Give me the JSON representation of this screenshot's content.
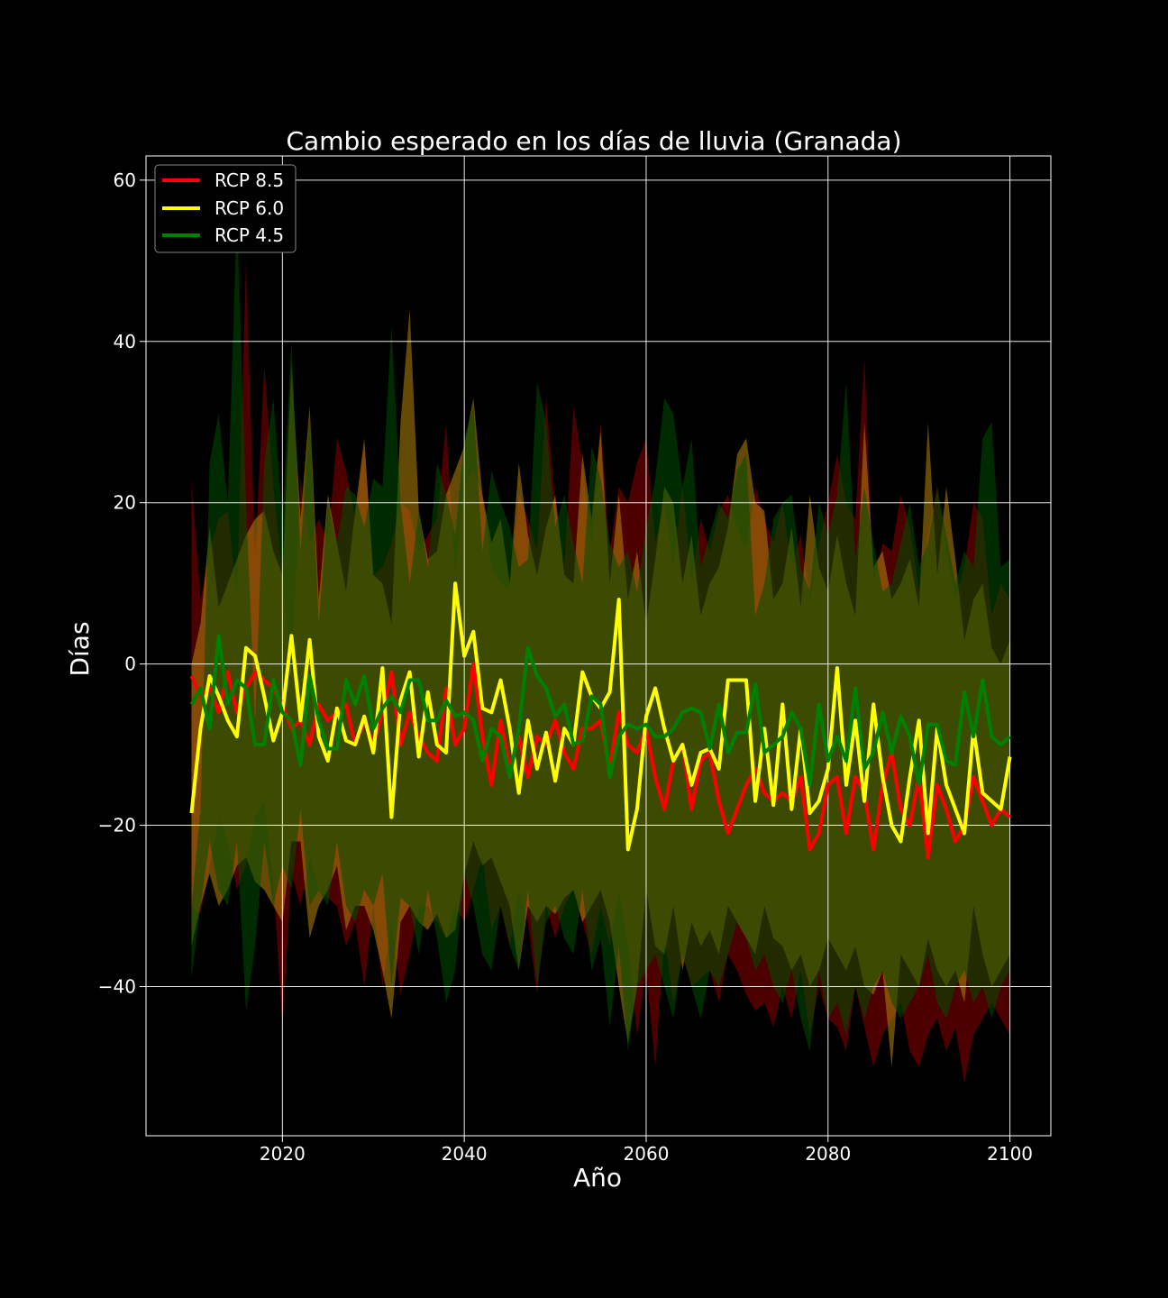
{
  "chart_data": {
    "type": "line",
    "title": "Cambio esperado en los días de lluvia (Granada)",
    "xlabel": "Año",
    "ylabel": "Días",
    "xlim": [
      2005,
      2104.5
    ],
    "ylim": [
      -58.5,
      63.0
    ],
    "x_ticks": [
      2020,
      2040,
      2060,
      2080,
      2100
    ],
    "x_tick_labels": [
      "2020",
      "2040",
      "2060",
      "2080",
      "2100"
    ],
    "y_ticks": [
      60,
      40,
      20,
      0,
      -20,
      -40
    ],
    "y_tick_labels": [
      "60",
      "40",
      "20",
      "0",
      "−20",
      "−40"
    ],
    "grid": true,
    "legend_position": "top-left",
    "background": "#000000",
    "x": [
      2010,
      2011,
      2012,
      2013,
      2014,
      2015,
      2016,
      2017,
      2018,
      2019,
      2020,
      2021,
      2022,
      2023,
      2024,
      2025,
      2026,
      2027,
      2028,
      2029,
      2030,
      2031,
      2032,
      2033,
      2034,
      2035,
      2036,
      2037,
      2038,
      2039,
      2040,
      2041,
      2042,
      2043,
      2044,
      2045,
      2046,
      2047,
      2048,
      2049,
      2050,
      2051,
      2052,
      2053,
      2054,
      2055,
      2056,
      2057,
      2058,
      2059,
      2060,
      2061,
      2062,
      2063,
      2064,
      2065,
      2066,
      2067,
      2068,
      2069,
      2070,
      2071,
      2072,
      2073,
      2074,
      2075,
      2076,
      2077,
      2078,
      2079,
      2080,
      2081,
      2082,
      2083,
      2084,
      2085,
      2086,
      2087,
      2088,
      2089,
      2090,
      2091,
      2092,
      2093,
      2094,
      2095,
      2096,
      2097,
      2098,
      2099,
      2100
    ],
    "series": [
      {
        "name": "RCP 8.5",
        "color": "#ff0000",
        "band_color": "#8b0000",
        "values": [
          -1.5,
          -4,
          -3,
          -6,
          -1,
          -6,
          -3,
          -1,
          -2,
          -3,
          -5,
          -8,
          -7,
          -10,
          -5,
          -7,
          -6,
          -5,
          -10,
          -7,
          -10,
          -6,
          -1,
          -10,
          -6,
          -9,
          -11,
          -12,
          -3,
          -10,
          -8,
          0,
          -9,
          -15,
          -7,
          -13,
          -9,
          -14,
          -9,
          -10,
          -7,
          -11,
          -13,
          -8,
          -8,
          -7,
          -13,
          -6,
          -10,
          -11,
          -8,
          -14,
          -18,
          -12,
          -10,
          -18,
          -12,
          -11,
          -17,
          -21,
          -18,
          -15,
          -13,
          -16,
          -17,
          -16,
          -17,
          -14,
          -23,
          -21,
          -15,
          -14,
          -21,
          -14,
          -16,
          -23,
          -15,
          -11,
          -18,
          -20,
          -14,
          -24,
          -15,
          -18,
          -22,
          -20,
          -14,
          -17,
          -20,
          -18,
          -19
        ],
        "band_low": [
          -30,
          -31,
          -25,
          -19,
          -22,
          -28,
          -25,
          -19,
          -17,
          -27,
          -45,
          -26,
          -30,
          -24,
          -28,
          -29,
          -30,
          -35,
          -32,
          -40,
          -30,
          -40,
          -32,
          -41,
          -36,
          -30,
          -30,
          -32,
          -34,
          -30,
          -32,
          -28,
          -24,
          -33,
          -30,
          -35,
          -28,
          -32,
          -41,
          -30,
          -34,
          -30,
          -28,
          -32,
          -36,
          -30,
          -35,
          -28,
          -35,
          -46,
          -38,
          -50,
          -34,
          -42,
          -36,
          -40,
          -39,
          -38,
          -42,
          -36,
          -38,
          -41,
          -43,
          -42,
          -45,
          -40,
          -44,
          -38,
          -46,
          -40,
          -44,
          -45,
          -48,
          -40,
          -45,
          -50,
          -46,
          -44,
          -42,
          -48,
          -50,
          -46,
          -44,
          -48,
          -45,
          -52,
          -46,
          -44,
          -42,
          -44,
          -46
        ],
        "band_high": [
          23,
          8,
          14,
          18,
          19,
          8,
          50,
          13,
          37,
          22,
          11,
          -1,
          23,
          15,
          18,
          15,
          28,
          24,
          18,
          27,
          11,
          12,
          15,
          20,
          19,
          14,
          16,
          18,
          30,
          11,
          22,
          24,
          21,
          12,
          10,
          9,
          21,
          18,
          14,
          33,
          20,
          12,
          32,
          25,
          15,
          30,
          14,
          22,
          20,
          25,
          28,
          15,
          20,
          12,
          22,
          10,
          18,
          14,
          19,
          21,
          17,
          14,
          22,
          18,
          15,
          20,
          12,
          16,
          8,
          15,
          20,
          26,
          20,
          18,
          38,
          10,
          15,
          14,
          21,
          17,
          9,
          16,
          22,
          14,
          8,
          12,
          20,
          18,
          6,
          10,
          8
        ]
      },
      {
        "name": "RCP 6.0",
        "color": "#ffff00",
        "band_color": "#b8860b",
        "values": [
          -18.5,
          -8,
          -1.5,
          -4,
          -7,
          -9,
          2,
          1,
          -4,
          -9.5,
          -6,
          3.5,
          -7,
          3,
          -9,
          -12,
          -5.5,
          -9.5,
          -10,
          -6.5,
          -11,
          -0.5,
          -19,
          -4.5,
          -1,
          -11.5,
          -3.5,
          -10,
          -11,
          10,
          1,
          4,
          -5.5,
          -6,
          -2,
          -8,
          -16,
          -7,
          -13,
          -8.5,
          -14.5,
          -8,
          -10,
          -1,
          -4,
          -5.5,
          -3.5,
          8,
          -23,
          -18,
          -6.5,
          -3,
          -8,
          -12,
          -10,
          -15,
          -11,
          -10.5,
          -13,
          -2,
          -2,
          -2,
          -17,
          -8,
          -17.5,
          -5,
          -18,
          -8,
          -18.5,
          -17,
          -13,
          -0.5,
          -15,
          -7,
          -17,
          -5,
          -14,
          -20,
          -22,
          -14,
          -7,
          -21,
          -8,
          -15,
          -18,
          -21,
          -8,
          -16,
          -17,
          -18,
          -11.5
        ],
        "band_low": [
          -35,
          -30,
          -26,
          -30,
          -28,
          -25,
          -24,
          -27,
          -28,
          -30,
          -32,
          -22,
          -22,
          -34,
          -30,
          -28,
          -25,
          -33,
          -30,
          -30,
          -33,
          -38,
          -44,
          -32,
          -30,
          -32,
          -33,
          -31,
          -34,
          -33,
          -26,
          -22,
          -25,
          -24,
          -27,
          -30,
          -38,
          -30,
          -32,
          -30,
          -31,
          -29,
          -28,
          -32,
          -30,
          -28,
          -32,
          -40,
          -47,
          -40,
          -28,
          -35,
          -36,
          -30,
          -38,
          -32,
          -35,
          -33,
          -36,
          -30,
          -32,
          -34,
          -36,
          -30,
          -34,
          -35,
          -38,
          -36,
          -40,
          -38,
          -34,
          -36,
          -38,
          -35,
          -40,
          -41,
          -38,
          -50,
          -36,
          -38,
          -40,
          -34,
          -38,
          -40,
          -38,
          -42,
          -30,
          -36,
          -40,
          -38,
          -36
        ],
        "band_high": [
          0,
          5,
          17,
          7,
          10,
          13,
          16,
          18,
          19,
          14,
          11,
          37,
          18,
          32,
          8,
          21,
          15,
          9,
          19,
          28,
          11,
          10,
          5,
          30,
          44,
          19,
          13,
          14,
          21,
          24,
          27,
          33,
          21,
          15,
          18,
          10,
          25,
          16,
          11,
          17,
          21,
          11,
          10,
          26,
          18,
          29,
          10,
          21,
          8,
          14,
          5,
          13,
          22,
          20,
          10,
          16,
          6,
          10,
          12,
          17,
          26,
          28,
          20,
          19,
          8,
          10,
          17,
          7,
          21,
          12,
          9,
          16,
          10,
          6,
          30,
          12,
          14,
          8,
          10,
          13,
          7,
          30,
          11,
          22,
          13,
          3,
          8,
          10,
          2,
          0,
          3
        ]
      },
      {
        "name": "RCP 4.5",
        "color": "#008000",
        "band_color": "#004d00",
        "values": [
          -5,
          -3,
          -8,
          3.5,
          -5,
          -2,
          -3,
          -10,
          -10,
          -2,
          -6,
          -7,
          -12.5,
          -1.5,
          -7,
          -10.5,
          -10.5,
          -2,
          -5,
          -1.5,
          -8,
          -5.5,
          -4,
          -6,
          -2,
          -2,
          -7,
          -7,
          -4.5,
          -6.5,
          -6,
          -7,
          -12,
          -8,
          -9,
          -14,
          -8,
          2,
          -1.5,
          -3,
          -6.5,
          -5,
          -10,
          -9.5,
          -4,
          -5,
          -14,
          -9,
          -7.5,
          -8,
          -7.5,
          -9,
          -9,
          -8,
          -6,
          -5.5,
          -6,
          -10.5,
          -5,
          -11,
          -8.5,
          -8.5,
          -2.5,
          -11,
          -10,
          -9,
          -6,
          -8,
          -15,
          -5,
          -12,
          -9,
          -12,
          -3,
          -13,
          -11,
          -6,
          -11,
          -6.5,
          -9,
          -15,
          -7.5,
          -7.5,
          -12,
          -12.5,
          -3.5,
          -9,
          -2,
          -9,
          -10,
          -9
        ],
        "band_low": [
          -39,
          -30,
          -22,
          -28,
          -30,
          -22,
          -43,
          -35,
          -22,
          -30,
          -25,
          -28,
          -18,
          -30,
          -28,
          -30,
          -22,
          -30,
          -32,
          -28,
          -30,
          -26,
          -40,
          -29,
          -30,
          -36,
          -28,
          -34,
          -42,
          -38,
          -26,
          -30,
          -36,
          -38,
          -30,
          -35,
          -38,
          -28,
          -40,
          -32,
          -30,
          -34,
          -36,
          -28,
          -38,
          -34,
          -45,
          -35,
          -48,
          -40,
          -38,
          -36,
          -40,
          -44,
          -36,
          -40,
          -44,
          -38,
          -40,
          -36,
          -32,
          -34,
          -38,
          -36,
          -40,
          -42,
          -38,
          -44,
          -48,
          -38,
          -44,
          -42,
          -46,
          -40,
          -44,
          -40,
          -38,
          -42,
          -44,
          -42,
          -40,
          -36,
          -42,
          -44,
          -40,
          -38,
          -42,
          -40,
          -44,
          -40,
          -38
        ],
        "band_high": [
          -30,
          -18,
          25,
          31,
          20,
          56,
          20,
          -7,
          25,
          33,
          18,
          40,
          14,
          31,
          5,
          20,
          15,
          22,
          21,
          17,
          23,
          22,
          42,
          20,
          10,
          19,
          12,
          25,
          21,
          16,
          28,
          32,
          14,
          24,
          20,
          17,
          12,
          13,
          35,
          30,
          17,
          21,
          15,
          10,
          27,
          23,
          15,
          12,
          14,
          9,
          17,
          23,
          33,
          31,
          22,
          28,
          12,
          16,
          20,
          18,
          24,
          26,
          6,
          10,
          18,
          20,
          21,
          12,
          9,
          20,
          16,
          21,
          35,
          13,
          22,
          15,
          9,
          10,
          15,
          20,
          12,
          15,
          22,
          16,
          10,
          14,
          12,
          28,
          30,
          12,
          13
        ]
      }
    ]
  }
}
